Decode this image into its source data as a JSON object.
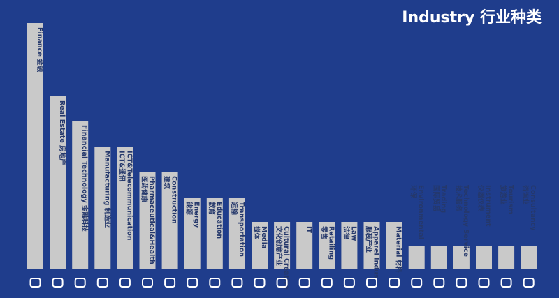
{
  "chart_data": {
    "type": "bar",
    "title": "Industry 行业种类",
    "categories": [
      [
        "Finance 金融"
      ],
      [
        "Real Estate 房地产"
      ],
      [
        "Financial Technology 金融科技"
      ],
      [
        "Manufacturing 制造业"
      ],
      [
        "ICT&Telecommunication",
        "ICT&通讯"
      ],
      [
        "Pharmaceutical&Health",
        "医药健康"
      ],
      [
        "Construction",
        "建筑"
      ],
      [
        "Energy",
        "能源"
      ],
      [
        "Education",
        "教育"
      ],
      [
        "Transportation",
        "运输"
      ],
      [
        "Media",
        "媒体"
      ],
      [
        "Cultural Creative",
        "文化创意产业"
      ],
      [
        "IT"
      ],
      [
        "Retailing",
        "零售"
      ],
      [
        "Law",
        "法律"
      ],
      [
        "Apparel Indus",
        "服装产业"
      ],
      [
        "Material 材料"
      ],
      [
        "Environmental",
        "环保"
      ],
      [
        "Trading",
        "国际贸易"
      ],
      [
        "Technology Service",
        "技术服务"
      ],
      [
        "Instrument",
        "仪器仪表"
      ],
      [
        "Tourism",
        "旅游业"
      ],
      [
        "Consultancy",
        "咨询业"
      ]
    ],
    "values": [
      352,
      247,
      212,
      175,
      175,
      139,
      139,
      102,
      102,
      102,
      67,
      67,
      67,
      67,
      67,
      67,
      67,
      32,
      32,
      32,
      32,
      32,
      32
    ],
    "color": "#c9c9c9"
  }
}
